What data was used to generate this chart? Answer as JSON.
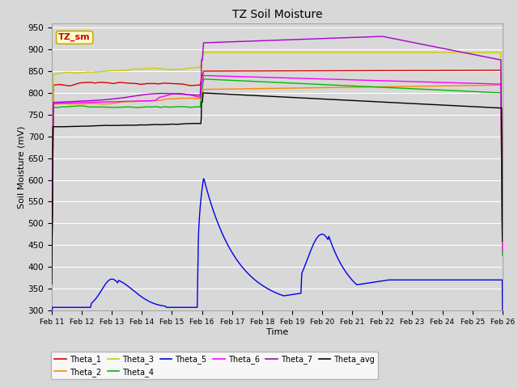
{
  "title": "TZ Soil Moisture",
  "xlabel": "Time",
  "ylabel": "Soil Moisture (mV)",
  "ylim": [
    300,
    960
  ],
  "yticks": [
    300,
    350,
    400,
    450,
    500,
    550,
    600,
    650,
    700,
    750,
    800,
    850,
    900,
    950
  ],
  "date_labels": [
    "Feb 11",
    "Feb 12",
    "Feb 13",
    "Feb 14",
    "Feb 15",
    "Feb 16",
    "Feb 17",
    "Feb 18",
    "Feb 19",
    "Feb 20",
    "Feb 21",
    "Feb 22",
    "Feb 23",
    "Feb 24",
    "Feb 25",
    "Feb 26"
  ],
  "background_color": "#d8d8d8",
  "plot_bg_color": "#d8d8d8",
  "grid_color": "#ffffff",
  "legend_box_color": "#ffffcc",
  "legend_box_edge": "#ccaa00",
  "tz_sm_label_color": "#cc0000",
  "series_colors": {
    "Theta_1": "#dd0000",
    "Theta_2": "#ff8800",
    "Theta_3": "#cccc00",
    "Theta_4": "#00bb00",
    "Theta_5": "#0000ee",
    "Theta_6": "#ff00ff",
    "Theta_7": "#aa00cc",
    "Theta_avg": "#000000"
  },
  "figsize": [
    6.4,
    4.8
  ],
  "dpi": 100
}
